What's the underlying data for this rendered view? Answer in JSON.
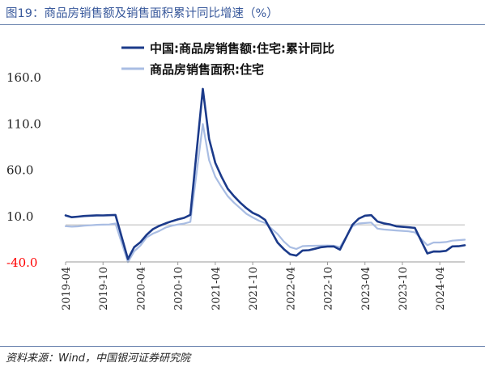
{
  "figure": {
    "title": "图19：商品房销售额及销售面积累计同比增速（%）",
    "source": "资料来源：Wind，中国银河证券研究院"
  },
  "colors": {
    "negative_label": "#ff0000",
    "axis_label": "#222222",
    "title": "#3a5a9c"
  },
  "chart_data": {
    "type": "line",
    "title": "",
    "xlabel": "",
    "ylabel": "",
    "ylim": [
      -40,
      160
    ],
    "yticks": [
      {
        "value": 160,
        "label": "160.0"
      },
      {
        "value": 110,
        "label": "110.0"
      },
      {
        "value": 60,
        "label": "60.0"
      },
      {
        "value": 10,
        "label": "10.0"
      },
      {
        "value": -40,
        "label": "-40.0"
      }
    ],
    "xtick_labels": [
      "2019-04",
      "2019-10",
      "2020-04",
      "2020-10",
      "2021-04",
      "2021-10",
      "2022-04",
      "2022-10",
      "2023-04",
      "2023-10",
      "2024-04"
    ],
    "x_start": "2019-04",
    "x_end": "2024-08",
    "zero_line": 0,
    "legend_position": "top",
    "series": [
      {
        "name": "中国:商品房销售额:住宅:累计同比",
        "color": "#1b3a8a",
        "x": [
          "2019-04",
          "2019-05",
          "2019-06",
          "2019-07",
          "2019-08",
          "2019-09",
          "2019-10",
          "2019-11",
          "2019-12",
          "2020-02",
          "2020-03",
          "2020-04",
          "2020-05",
          "2020-06",
          "2020-07",
          "2020-08",
          "2020-09",
          "2020-10",
          "2020-11",
          "2020-12",
          "2021-02",
          "2021-03",
          "2021-04",
          "2021-05",
          "2021-06",
          "2021-07",
          "2021-08",
          "2021-09",
          "2021-10",
          "2021-11",
          "2021-12",
          "2022-02",
          "2022-03",
          "2022-04",
          "2022-05",
          "2022-06",
          "2022-07",
          "2022-08",
          "2022-09",
          "2022-10",
          "2022-11",
          "2022-12",
          "2023-02",
          "2023-03",
          "2023-04",
          "2023-05",
          "2023-06",
          "2023-07",
          "2023-08",
          "2023-09",
          "2023-10",
          "2023-11",
          "2023-12",
          "2024-02",
          "2024-03",
          "2024-04",
          "2024-05",
          "2024-06",
          "2024-07",
          "2024-08"
        ],
        "values": [
          10.2,
          8.3,
          8.9,
          9.6,
          10.0,
          10.3,
          10.2,
          10.5,
          10.7,
          -36.9,
          -24.1,
          -18.7,
          -10.7,
          -4.6,
          -1.1,
          1.6,
          3.9,
          5.9,
          7.6,
          10.8,
          147.0,
          93.0,
          67.0,
          52.0,
          39.0,
          31.0,
          24.0,
          18.0,
          13.0,
          10.0,
          5.3,
          -19.2,
          -26.2,
          -31.8,
          -33.2,
          -27.7,
          -27.3,
          -25.8,
          -24.1,
          -23.4,
          -23.3,
          -26.7,
          0.1,
          6.7,
          10.0,
          10.5,
          3.7,
          1.7,
          0.5,
          -1.5,
          -2.1,
          -2.6,
          -3.2,
          -30.8,
          -28.7,
          -28.8,
          -28.0,
          -23.2,
          -23.1,
          -22.0
        ]
      },
      {
        "name": "商品房销售面积:住宅",
        "color": "#a9bde3",
        "x": [
          "2019-04",
          "2019-05",
          "2019-06",
          "2019-07",
          "2019-08",
          "2019-09",
          "2019-10",
          "2019-11",
          "2019-12",
          "2020-02",
          "2020-03",
          "2020-04",
          "2020-05",
          "2020-06",
          "2020-07",
          "2020-08",
          "2020-09",
          "2020-10",
          "2020-11",
          "2020-12",
          "2021-02",
          "2021-03",
          "2021-04",
          "2021-05",
          "2021-06",
          "2021-07",
          "2021-08",
          "2021-09",
          "2021-10",
          "2021-11",
          "2021-12",
          "2022-02",
          "2022-03",
          "2022-04",
          "2022-05",
          "2022-06",
          "2022-07",
          "2022-08",
          "2022-09",
          "2022-10",
          "2022-11",
          "2022-12",
          "2023-02",
          "2023-03",
          "2023-04",
          "2023-05",
          "2023-06",
          "2023-07",
          "2023-08",
          "2023-09",
          "2023-10",
          "2023-11",
          "2023-12",
          "2024-02",
          "2024-03",
          "2024-04",
          "2024-05",
          "2024-06",
          "2024-07",
          "2024-08"
        ],
        "values": [
          -1.4,
          -1.9,
          -1.6,
          -0.8,
          -0.4,
          0.1,
          0.3,
          0.4,
          1.5,
          -40.3,
          -28.6,
          -22.4,
          -13.5,
          -9.4,
          -6.6,
          -3.0,
          -1.0,
          0.4,
          1.4,
          3.2,
          109.0,
          70.0,
          52.0,
          41.0,
          31.0,
          24.0,
          18.0,
          12.0,
          8.0,
          4.5,
          2.0,
          -10.0,
          -18.0,
          -24.0,
          -26.0,
          -23.0,
          -22.6,
          -22.5,
          -22.4,
          -22.3,
          -22.5,
          -24.0,
          -1.5,
          1.5,
          2.0,
          2.5,
          -4.0,
          -5.0,
          -5.5,
          -6.0,
          -6.5,
          -7.0,
          -8.0,
          -22.0,
          -19.0,
          -19.0,
          -18.5,
          -17.0,
          -16.5,
          -16.0
        ]
      }
    ]
  }
}
